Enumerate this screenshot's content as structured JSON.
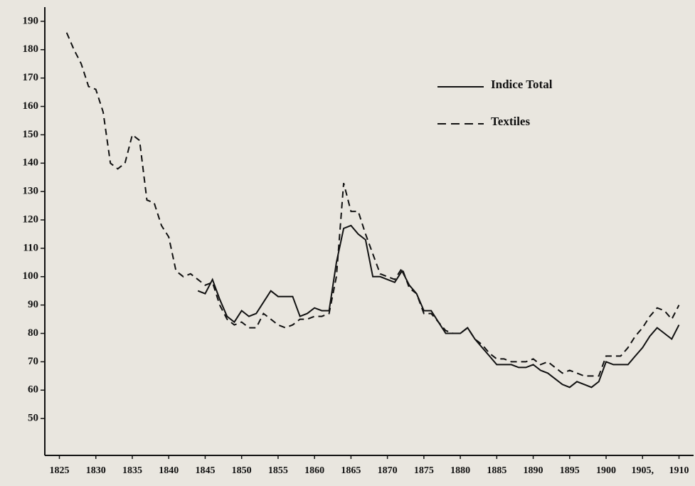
{
  "chart_data": {
    "type": "line",
    "x": [
      1826,
      1827,
      1828,
      1829,
      1830,
      1831,
      1832,
      1833,
      1834,
      1835,
      1836,
      1837,
      1838,
      1839,
      1840,
      1841,
      1842,
      1843,
      1844,
      1845,
      1846,
      1847,
      1848,
      1849,
      1850,
      1851,
      1852,
      1853,
      1854,
      1855,
      1856,
      1857,
      1858,
      1859,
      1860,
      1861,
      1862,
      1863,
      1864,
      1865,
      1866,
      1867,
      1868,
      1869,
      1870,
      1871,
      1872,
      1873,
      1874,
      1875,
      1876,
      1877,
      1878,
      1879,
      1880,
      1881,
      1882,
      1883,
      1884,
      1885,
      1886,
      1887,
      1888,
      1889,
      1890,
      1891,
      1892,
      1893,
      1894,
      1895,
      1896,
      1897,
      1898,
      1899,
      1900,
      1901,
      1902,
      1903,
      1904,
      1905,
      1906,
      1907,
      1908,
      1909,
      1910
    ],
    "series": [
      {
        "name": "Indice Total",
        "color": "#111111",
        "dash": "solid",
        "values": [
          null,
          null,
          null,
          null,
          null,
          null,
          null,
          null,
          null,
          null,
          null,
          null,
          null,
          null,
          null,
          null,
          null,
          null,
          95,
          94,
          99,
          92,
          86,
          84,
          88,
          86,
          87,
          91,
          95,
          93,
          93,
          93,
          86,
          87,
          89,
          88,
          88,
          105,
          117,
          118,
          115,
          113,
          100,
          100,
          99,
          98,
          102,
          97,
          94,
          88,
          88,
          84,
          80,
          80,
          80,
          82,
          78,
          75,
          72,
          69,
          69,
          69,
          68,
          68,
          69,
          67,
          66,
          64,
          62,
          61,
          63,
          62,
          61,
          63,
          70,
          69,
          69,
          69,
          72,
          75,
          79,
          82,
          80,
          78,
          83
        ]
      },
      {
        "name": "Textiles",
        "color": "#111111",
        "dash": "dashed",
        "values": [
          186,
          180,
          175,
          167,
          166,
          158,
          140,
          138,
          140,
          150,
          148,
          127,
          126,
          118,
          114,
          102,
          100,
          101,
          99,
          97,
          98,
          90,
          85,
          83,
          84,
          82,
          82,
          87,
          85,
          83,
          82,
          83,
          85,
          85,
          86,
          86,
          87,
          100,
          133,
          123,
          123,
          115,
          108,
          101,
          100,
          99,
          103,
          96,
          94,
          87,
          87,
          84,
          81,
          80,
          80,
          82,
          78,
          76,
          73,
          71,
          71,
          70,
          70,
          70,
          71,
          69,
          70,
          68,
          66,
          67,
          66,
          65,
          65,
          65,
          72,
          72,
          72,
          75,
          79,
          82,
          86,
          89,
          88,
          85,
          90
        ]
      }
    ],
    "xlim": [
      1823,
      1912
    ],
    "xticks": [
      1825,
      1830,
      1835,
      1840,
      1845,
      1850,
      1855,
      1860,
      1865,
      1870,
      1875,
      1880,
      1885,
      1890,
      1895,
      1900,
      {
        "value": 1905,
        "label": "1905,"
      },
      1910
    ],
    "ylim": [
      37,
      195
    ],
    "yticks": [
      50,
      60,
      70,
      80,
      90,
      100,
      110,
      120,
      130,
      140,
      150,
      160,
      170,
      180,
      190
    ],
    "grid": false,
    "legend": "top-right"
  }
}
